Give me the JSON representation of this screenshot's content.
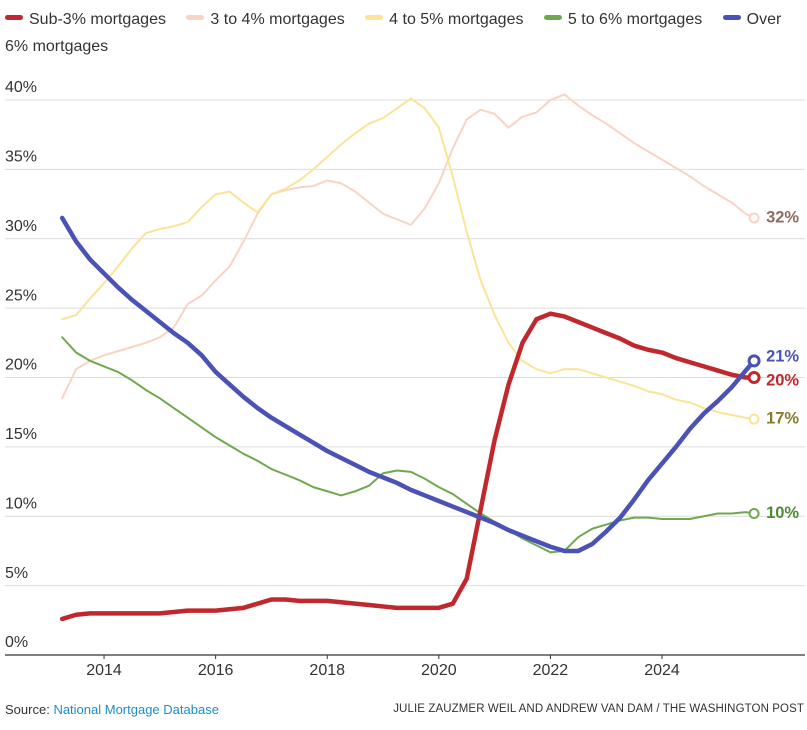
{
  "chart_data": {
    "type": "line",
    "x": [
      2013.25,
      2013.5,
      2013.75,
      2014,
      2014.25,
      2014.5,
      2014.75,
      2015,
      2015.25,
      2015.5,
      2015.75,
      2016,
      2016.25,
      2016.5,
      2016.75,
      2017,
      2017.25,
      2017.5,
      2017.75,
      2018,
      2018.25,
      2018.5,
      2018.75,
      2019,
      2019.25,
      2019.5,
      2019.75,
      2020,
      2020.25,
      2020.5,
      2020.75,
      2021,
      2021.25,
      2021.5,
      2021.75,
      2022,
      2022.25,
      2022.5,
      2022.75,
      2023,
      2023.25,
      2023.5,
      2023.75,
      2024,
      2024.25,
      2024.5,
      2024.75,
      2025,
      2025.25,
      2025.5,
      2025.65
    ],
    "xlim": [
      2012.2,
      2026.5
    ],
    "xticks": [
      2014,
      2016,
      2018,
      2020,
      2022,
      2024
    ],
    "ylim": [
      0,
      40
    ],
    "yticks": [
      {
        "value": 0,
        "label": "0%"
      },
      {
        "value": 5,
        "label": "5%"
      },
      {
        "value": 10,
        "label": "10%"
      },
      {
        "value": 15,
        "label": "15%"
      },
      {
        "value": 20,
        "label": "20%"
      },
      {
        "value": 25,
        "label": "25%"
      },
      {
        "value": 30,
        "label": "30%"
      },
      {
        "value": 35,
        "label": "35%"
      },
      {
        "value": 40,
        "label": "40%"
      }
    ],
    "grid": true,
    "series": [
      {
        "name": "Sub-3% mortgages",
        "color": "#c0282d",
        "values": [
          2.6,
          2.9,
          3.0,
          3.0,
          3.0,
          3.0,
          3.0,
          3.0,
          3.1,
          3.2,
          3.2,
          3.2,
          3.3,
          3.4,
          3.7,
          4.0,
          4.0,
          3.9,
          3.9,
          3.9,
          3.8,
          3.7,
          3.6,
          3.5,
          3.4,
          3.4,
          3.4,
          3.4,
          3.7,
          5.5,
          10.5,
          15.5,
          19.5,
          22.5,
          24.2,
          24.6,
          24.4,
          24.0,
          23.6,
          23.2,
          22.8,
          22.3,
          22.0,
          21.8,
          21.4,
          21.1,
          20.8,
          20.5,
          20.2,
          20.0,
          20.0
        ],
        "value_labels": [
          null,
          null,
          null,
          null,
          null,
          null,
          null,
          null,
          null,
          null,
          null,
          null,
          null,
          null,
          null,
          null,
          null,
          null,
          null,
          null,
          null,
          null,
          null,
          null,
          null,
          null,
          null,
          null,
          null,
          null,
          null,
          null,
          null,
          null,
          null,
          null,
          null,
          null,
          null,
          null,
          null,
          null,
          null,
          null,
          null,
          null,
          null,
          null,
          null,
          null,
          "20%"
        ]
      },
      {
        "name": "3 to 4% mortgages",
        "color": "#f7d4c4",
        "values": [
          18.5,
          20.6,
          21.2,
          21.6,
          21.9,
          22.2,
          22.5,
          22.9,
          23.6,
          25.3,
          25.9,
          27.0,
          28.0,
          29.8,
          31.8,
          33.2,
          33.5,
          33.7,
          33.8,
          34.2,
          34.0,
          33.4,
          32.6,
          31.8,
          31.4,
          31.0,
          32.2,
          34.0,
          36.5,
          38.6,
          39.3,
          39.0,
          38.0,
          38.8,
          39.1,
          40.0,
          40.4,
          39.6,
          38.9,
          38.3,
          37.6,
          36.9,
          36.3,
          35.7,
          35.1,
          34.5,
          33.8,
          33.2,
          32.6,
          31.8,
          31.5
        ],
        "value_labels": [
          null,
          null,
          null,
          null,
          null,
          null,
          null,
          null,
          null,
          null,
          null,
          null,
          null,
          null,
          null,
          null,
          null,
          null,
          null,
          null,
          null,
          null,
          null,
          null,
          null,
          null,
          null,
          null,
          null,
          null,
          null,
          null,
          null,
          null,
          null,
          null,
          null,
          null,
          null,
          null,
          null,
          null,
          null,
          null,
          null,
          null,
          null,
          null,
          null,
          null,
          "32%"
        ]
      },
      {
        "name": "4 to 5% mortgages",
        "color": "#fae496",
        "values": [
          24.2,
          24.5,
          25.7,
          26.8,
          28.0,
          29.3,
          30.4,
          30.7,
          30.9,
          31.2,
          32.3,
          33.2,
          33.4,
          32.6,
          31.9,
          33.2,
          33.6,
          34.2,
          35.0,
          35.9,
          36.8,
          37.6,
          38.3,
          38.7,
          39.4,
          40.1,
          39.4,
          38.0,
          34.5,
          30.5,
          27.0,
          24.5,
          22.5,
          21.2,
          20.6,
          20.3,
          20.6,
          20.6,
          20.3,
          20.0,
          19.7,
          19.4,
          19.0,
          18.8,
          18.4,
          18.2,
          17.8,
          17.5,
          17.3,
          17.1,
          17.0
        ],
        "value_labels": [
          null,
          null,
          null,
          null,
          null,
          null,
          null,
          null,
          null,
          null,
          null,
          null,
          null,
          null,
          null,
          null,
          null,
          null,
          null,
          null,
          null,
          null,
          null,
          null,
          null,
          null,
          null,
          null,
          null,
          null,
          null,
          null,
          null,
          null,
          null,
          null,
          null,
          null,
          null,
          null,
          null,
          null,
          null,
          null,
          null,
          null,
          null,
          null,
          null,
          null,
          "17%"
        ]
      },
      {
        "name": "5 to 6% mortgages",
        "color": "#6fa84e",
        "values": [
          22.9,
          21.8,
          21.2,
          20.8,
          20.4,
          19.8,
          19.1,
          18.5,
          17.8,
          17.1,
          16.4,
          15.7,
          15.1,
          14.5,
          14.0,
          13.4,
          13.0,
          12.6,
          12.1,
          11.8,
          11.5,
          11.8,
          12.2,
          13.1,
          13.3,
          13.2,
          12.7,
          12.1,
          11.6,
          10.9,
          10.2,
          9.6,
          9.0,
          8.4,
          7.9,
          7.4,
          7.5,
          8.5,
          9.1,
          9.4,
          9.7,
          9.9,
          9.9,
          9.8,
          9.8,
          9.8,
          10.0,
          10.2,
          10.2,
          10.3,
          10.2
        ],
        "value_labels": [
          null,
          null,
          null,
          null,
          null,
          null,
          null,
          null,
          null,
          null,
          null,
          null,
          null,
          null,
          null,
          null,
          null,
          null,
          null,
          null,
          null,
          null,
          null,
          null,
          null,
          null,
          null,
          null,
          null,
          null,
          null,
          null,
          null,
          null,
          null,
          null,
          null,
          null,
          null,
          null,
          null,
          null,
          null,
          null,
          null,
          null,
          null,
          null,
          null,
          null,
          "10%"
        ]
      },
      {
        "name": "Over 6% mortgages",
        "color": "#4b52b5",
        "values": [
          31.5,
          29.8,
          28.5,
          27.5,
          26.5,
          25.6,
          24.8,
          24.0,
          23.2,
          22.5,
          21.6,
          20.4,
          19.5,
          18.6,
          17.8,
          17.1,
          16.5,
          15.9,
          15.3,
          14.7,
          14.2,
          13.7,
          13.2,
          12.8,
          12.4,
          11.9,
          11.5,
          11.1,
          10.7,
          10.3,
          9.9,
          9.5,
          9.0,
          8.6,
          8.2,
          7.8,
          7.5,
          7.5,
          8.0,
          8.9,
          9.9,
          11.2,
          12.6,
          13.8,
          15.0,
          16.3,
          17.4,
          18.3,
          19.3,
          20.5,
          21.2
        ],
        "value_labels": [
          null,
          null,
          null,
          null,
          null,
          null,
          null,
          null,
          null,
          null,
          null,
          null,
          null,
          null,
          null,
          null,
          null,
          null,
          null,
          null,
          null,
          null,
          null,
          null,
          null,
          null,
          null,
          null,
          null,
          null,
          null,
          null,
          null,
          null,
          null,
          null,
          null,
          null,
          null,
          null,
          null,
          null,
          null,
          null,
          null,
          null,
          null,
          null,
          null,
          null,
          "21%"
        ]
      }
    ],
    "source": {
      "label": "Source:",
      "name": "National Mortgage Database"
    },
    "credit": "JULIE ZAUZMER WEIL AND ANDREW VAN DAM / THE WASHINGTON POST"
  }
}
